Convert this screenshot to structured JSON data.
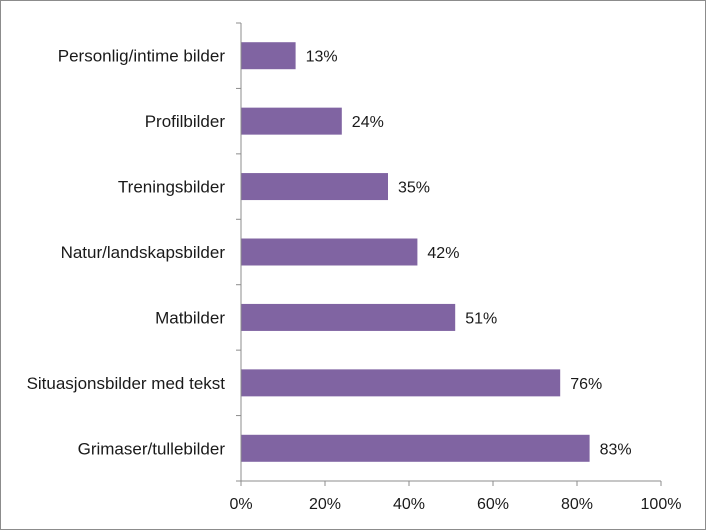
{
  "chart_data": {
    "type": "bar",
    "orientation": "horizontal",
    "title": "",
    "xlabel": "",
    "ylabel": "",
    "categories": [
      "Personlig/intime bilder",
      "Profilbilder",
      "Treningsbilder",
      "Natur/landskapsbilder",
      "Matbilder",
      "Situasjonsbilder med tekst",
      "Grimaser/tullebilder"
    ],
    "values": [
      13,
      24,
      35,
      42,
      51,
      76,
      83
    ],
    "value_labels": [
      "13%",
      "24%",
      "35%",
      "42%",
      "51%",
      "76%",
      "83%"
    ],
    "xlim": [
      0,
      100
    ],
    "x_ticks": [
      0,
      20,
      40,
      60,
      80,
      100
    ],
    "x_tick_labels": [
      "0%",
      "20%",
      "40%",
      "60%",
      "80%",
      "100%"
    ],
    "grid": false,
    "legend": "none",
    "bar_color": "#8064a2"
  }
}
